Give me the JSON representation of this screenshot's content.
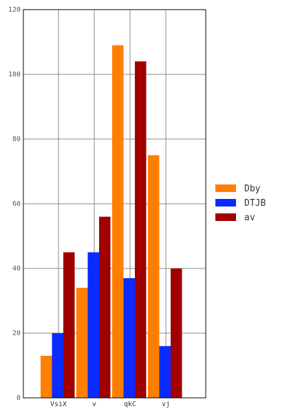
{
  "chart_data": {
    "type": "bar",
    "categories": [
      "VsiX",
      "v",
      "qkC",
      "vj"
    ],
    "series": [
      {
        "name": "Dby",
        "color": "#ff7f00",
        "values": [
          13,
          34,
          109,
          75
        ]
      },
      {
        "name": "DTJB",
        "color": "#0a2bff",
        "values": [
          20,
          45,
          37,
          16
        ]
      },
      {
        "name": "av",
        "color": "#a00000",
        "values": [
          45,
          56,
          104,
          40
        ]
      }
    ],
    "ylim": [
      0,
      120
    ],
    "yticks": [
      0,
      20,
      40,
      60,
      80,
      100,
      120
    ],
    "grid": true,
    "legend_position": "right"
  }
}
